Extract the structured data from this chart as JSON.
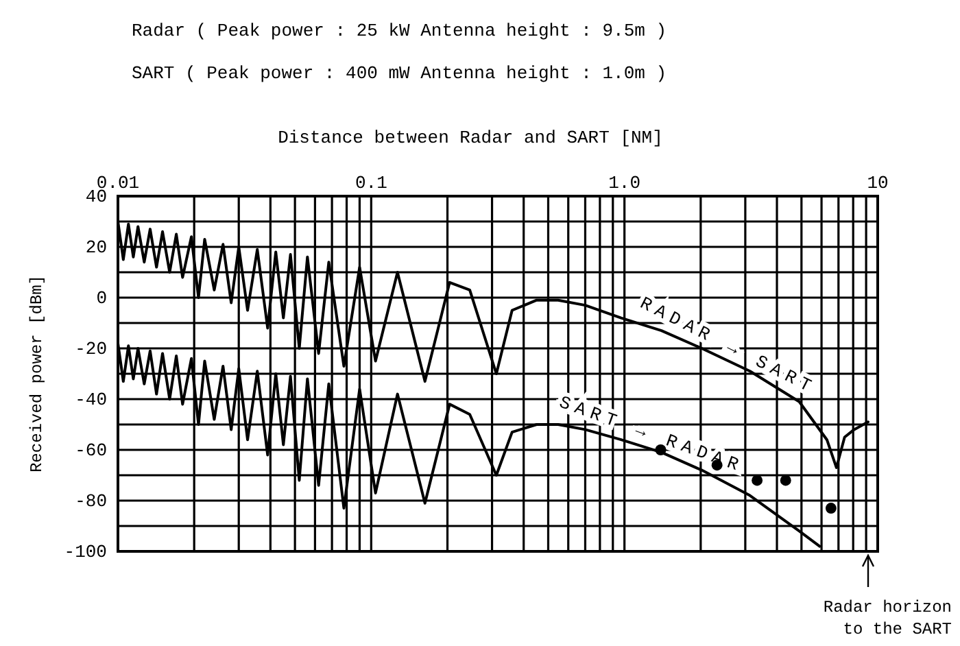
{
  "chart_data": {
    "type": "line",
    "title": "Radar ( Peak power : 25 kW Antenna height : 9.5m )",
    "subtitle": "SART ( Peak power : 400 mW Antenna height : 1.0m )",
    "xlabel": "Distance between Radar and SART [NM]",
    "ylabel": "Received power [dBm]",
    "log": "x",
    "grid": true,
    "xlim": [
      0.01,
      10
    ],
    "ylim": [
      -100,
      40
    ],
    "xticks": [
      0.01,
      {
        "value": 0.02,
        "label": null
      },
      {
        "value": 0.03,
        "label": null
      },
      {
        "value": 0.04,
        "label": null
      },
      {
        "value": 0.05,
        "label": null
      },
      {
        "value": 0.06,
        "label": null
      },
      {
        "value": 0.07,
        "label": null
      },
      {
        "value": 0.08,
        "label": null
      },
      {
        "value": 0.09,
        "label": null
      },
      0.1,
      {
        "value": 0.2,
        "label": null
      },
      {
        "value": 0.3,
        "label": null
      },
      {
        "value": 0.4,
        "label": null
      },
      {
        "value": 0.5,
        "label": null
      },
      {
        "value": 0.6,
        "label": null
      },
      {
        "value": 0.7,
        "label": null
      },
      {
        "value": 0.8,
        "label": null
      },
      {
        "value": 0.9,
        "label": null
      },
      {
        "value": 1,
        "label": "1.0"
      },
      {
        "value": 2,
        "label": null
      },
      {
        "value": 3,
        "label": null
      },
      {
        "value": 4,
        "label": null
      },
      {
        "value": 5,
        "label": null
      },
      {
        "value": 6,
        "label": null
      },
      {
        "value": 7,
        "label": null
      },
      {
        "value": 8,
        "label": null
      },
      {
        "value": 9,
        "label": null
      },
      10
    ],
    "yticks": [
      40,
      {
        "value": 30,
        "label": null
      },
      20,
      {
        "value": 10,
        "label": null
      },
      0,
      {
        "value": -10,
        "label": null
      },
      -20,
      {
        "value": -30,
        "label": null
      },
      -40,
      {
        "value": -50,
        "label": null
      },
      -60,
      {
        "value": -70,
        "label": null
      },
      -80,
      {
        "value": -90,
        "label": null
      },
      -100
    ],
    "series": [
      {
        "name": "RADAR → SART",
        "color": "#000000",
        "marker": "none",
        "x": [
          0.01,
          0.0105,
          0.011,
          0.0115,
          0.012,
          0.0127,
          0.0134,
          0.0142,
          0.015,
          0.016,
          0.017,
          0.018,
          0.0195,
          0.0208,
          0.022,
          0.024,
          0.026,
          0.028,
          0.03,
          0.0325,
          0.0355,
          0.039,
          0.042,
          0.045,
          0.048,
          0.052,
          0.056,
          0.062,
          0.068,
          0.078,
          0.09,
          0.104,
          0.127,
          0.163,
          0.204,
          0.245,
          0.312,
          0.36,
          0.45,
          0.547,
          0.7,
          0.97,
          1.4,
          2.02,
          3.13,
          4.9,
          6.3,
          6.87,
          7.4,
          8.07,
          9.16
        ],
        "values": [
          30,
          15,
          29,
          16,
          28,
          14,
          27,
          12,
          26,
          10,
          25,
          8,
          24,
          0,
          23,
          3,
          21,
          -2,
          20,
          -5,
          19,
          -12,
          18,
          -8,
          17,
          -20,
          16,
          -22,
          14,
          -27,
          12,
          -25,
          10,
          -33,
          6,
          3,
          -30,
          -5,
          -1,
          -1,
          -3,
          -8,
          -13,
          -20,
          -29,
          -41,
          -56,
          -67,
          -55,
          -52,
          -49
        ]
      },
      {
        "name": "SART → RADAR",
        "color": "#000000",
        "marker": "none",
        "x": [
          0.01,
          0.0105,
          0.011,
          0.0115,
          0.012,
          0.0127,
          0.0134,
          0.0142,
          0.015,
          0.016,
          0.017,
          0.018,
          0.0195,
          0.0208,
          0.022,
          0.024,
          0.026,
          0.028,
          0.03,
          0.0325,
          0.0355,
          0.039,
          0.042,
          0.045,
          0.048,
          0.052,
          0.056,
          0.062,
          0.068,
          0.078,
          0.09,
          0.104,
          0.127,
          0.163,
          0.204,
          0.245,
          0.312,
          0.36,
          0.45,
          0.547,
          0.7,
          0.97,
          1.4,
          2.02,
          3.13,
          4.9,
          5.9
        ],
        "values": [
          -18,
          -33,
          -19,
          -32,
          -20,
          -34,
          -21,
          -38,
          -22,
          -40,
          -23,
          -42,
          -24,
          -50,
          -25,
          -48,
          -27,
          -52,
          -28,
          -56,
          -29,
          -62,
          -30,
          -58,
          -31,
          -72,
          -32,
          -74,
          -34,
          -83,
          -36,
          -77,
          -38,
          -81,
          -42,
          -46,
          -70,
          -53,
          -50,
          -50,
          -52,
          -56,
          -61,
          -68,
          -78,
          -92,
          -98
        ]
      },
      {
        "type": "scatter",
        "color": "#000000",
        "marker": "circle",
        "x": [
          1.39,
          2.32,
          3.34,
          4.33,
          6.54
        ],
        "values": [
          -60,
          -66,
          -72,
          -72,
          -83
        ]
      }
    ],
    "annotations": [
      "Radar horizon to the SART"
    ]
  }
}
